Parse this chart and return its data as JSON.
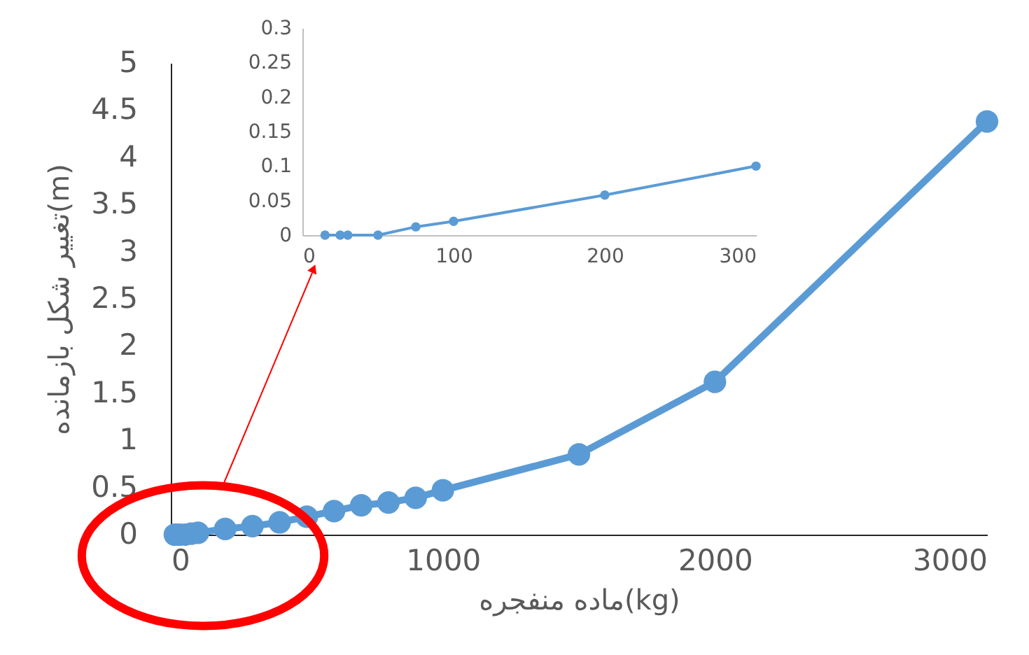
{
  "chart_data": [
    {
      "type": "line",
      "xlabel": "ماده منفجره(kg)",
      "ylabel": "تغییر شکل بازمانده(m)",
      "x": [
        15,
        25,
        30,
        50,
        75,
        100,
        200,
        300,
        400,
        500,
        600,
        700,
        800,
        900,
        1000,
        1500,
        2000,
        3000
      ],
      "series": [
        {
          "color": "#5b9bd5",
          "values": [
            0,
            0,
            0,
            0,
            0.01,
            0.02,
            0.06,
            0.09,
            0.13,
            0.19,
            0.25,
            0.31,
            0.34,
            0.39,
            0.47,
            0.85,
            1.62,
            4.38
          ]
        }
      ],
      "xlim": [
        0,
        3000
      ],
      "xticks": [
        0,
        1000,
        2000,
        3000
      ],
      "ylim": [
        0,
        5
      ],
      "yticks": [
        0,
        0.5,
        1,
        1.5,
        2,
        2.5,
        3,
        3.5,
        4,
        4.5,
        5
      ],
      "marker": "circle",
      "line_style": "solid"
    },
    {
      "type": "line",
      "x": [
        15,
        25,
        30,
        50,
        75,
        100,
        200,
        300
      ],
      "series": [
        {
          "color": "#5b9bd5",
          "values": [
            0,
            0,
            0,
            0,
            0.012,
            0.02,
            0.058,
            0.1
          ]
        }
      ],
      "xlim": [
        0,
        300
      ],
      "xticks": [
        0,
        100,
        200,
        300
      ],
      "ylim": [
        0,
        0.3
      ],
      "yticks": [
        0,
        0.05,
        0.1,
        0.15,
        0.2,
        0.25,
        0.3
      ],
      "marker": "circle",
      "line_style": "solid"
    }
  ]
}
